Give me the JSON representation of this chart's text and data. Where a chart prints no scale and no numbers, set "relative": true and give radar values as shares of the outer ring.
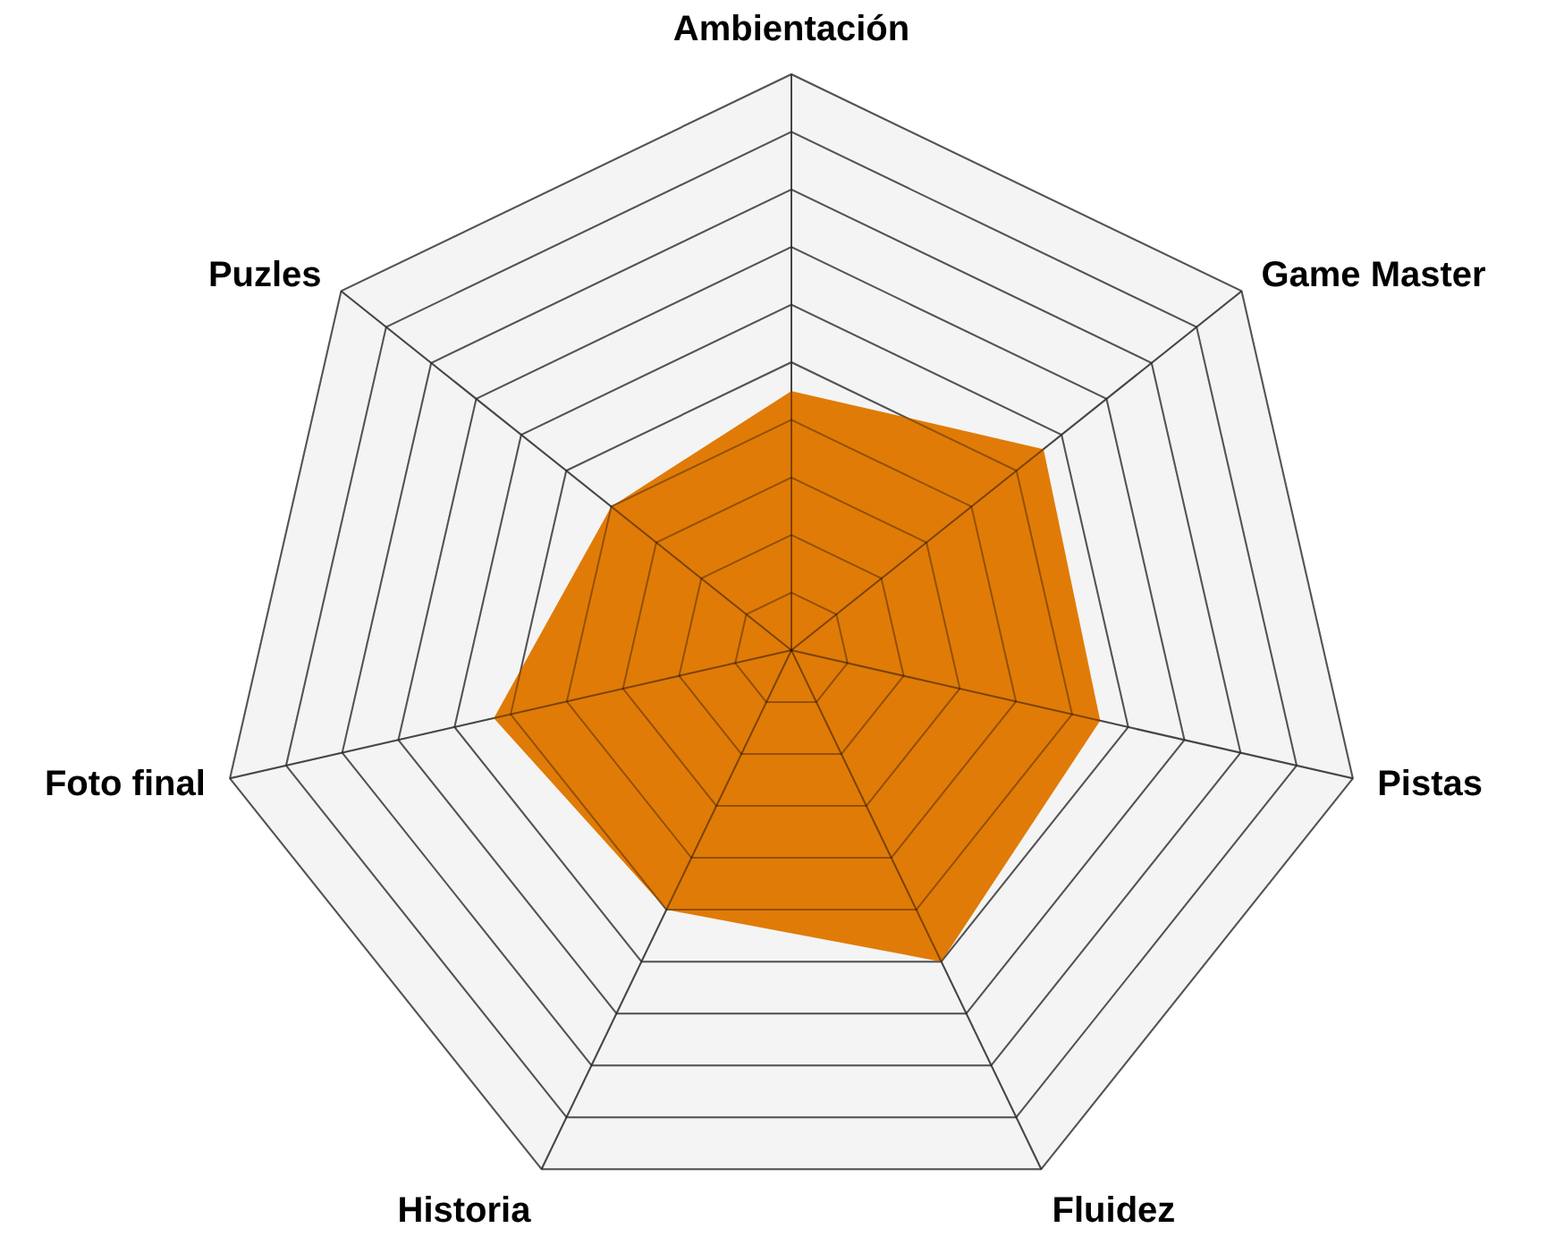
{
  "chart_data": {
    "type": "radar",
    "categories": [
      "Ambientación",
      "Game Master",
      "Pistas",
      "Fluidez",
      "Historia",
      "Foto final",
      "Puzles"
    ],
    "series": [
      {
        "color": "#e07b07",
        "values": [
          0.45,
          0.56,
          0.55,
          0.6,
          0.5,
          0.53,
          0.4
        ]
      }
    ],
    "relative": true,
    "grid": true
  }
}
